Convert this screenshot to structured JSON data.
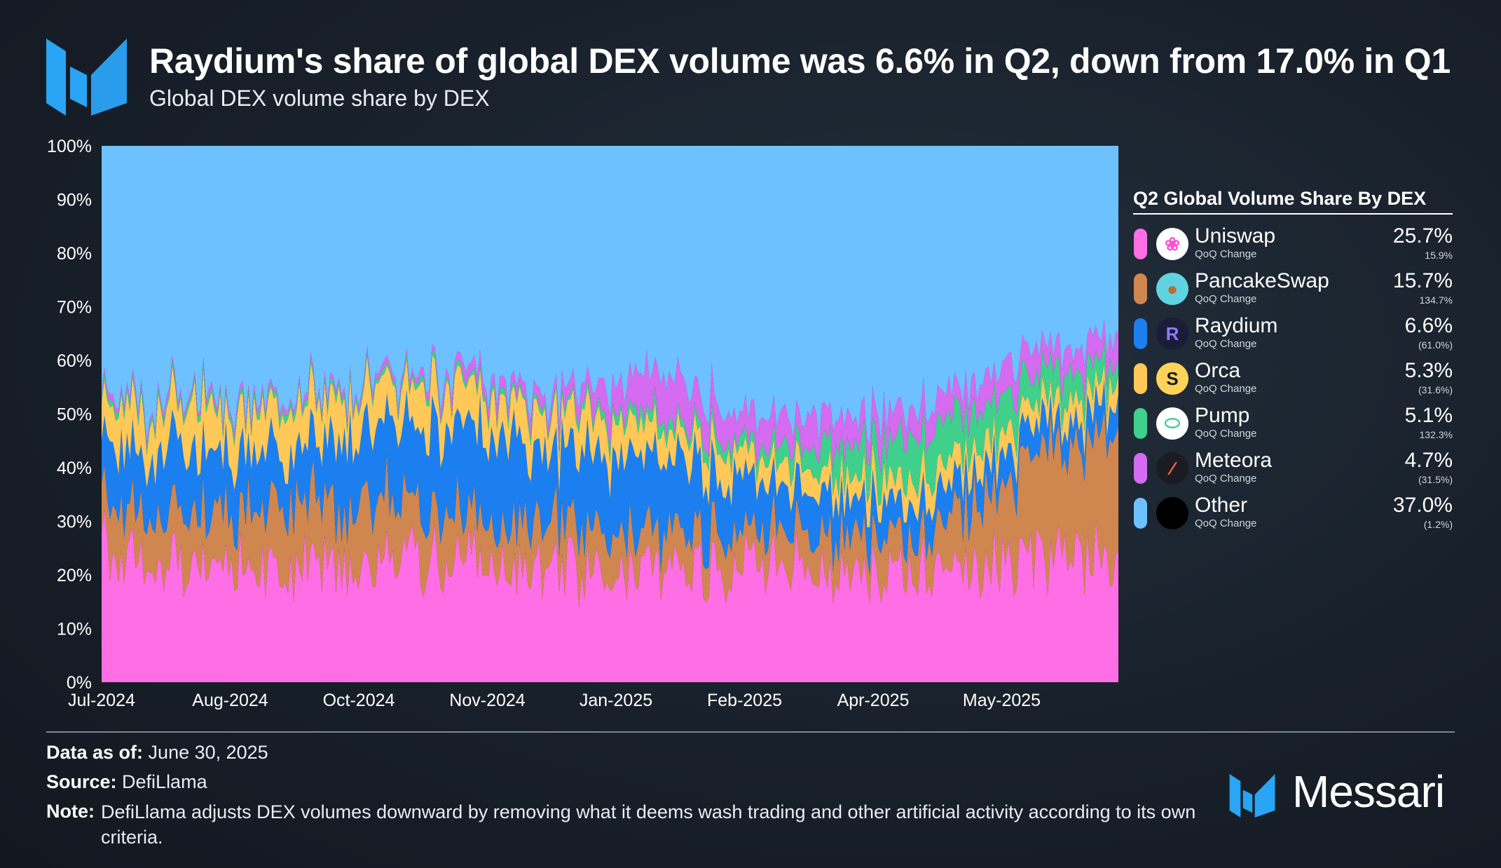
{
  "header": {
    "title": "Raydium's share of global DEX volume was 6.6% in Q2, down from 17.0% in Q1",
    "subtitle": "Global DEX volume share by DEX"
  },
  "legend": {
    "title": "Q2 Global Volume Share By DEX",
    "sub_label": "QoQ Change",
    "items": [
      {
        "name": "Uniswap",
        "share": "25.7%",
        "change": "15.9%",
        "color": "#ff6ee4",
        "icon": "uniswap-icon"
      },
      {
        "name": "PancakeSwap",
        "share": "15.7%",
        "change": "134.7%",
        "color": "#d0864f",
        "icon": "pancakeswap-icon"
      },
      {
        "name": "Raydium",
        "share": "6.6%",
        "change": "(61.0%)",
        "color": "#1b7ff0",
        "icon": "raydium-icon"
      },
      {
        "name": "Orca",
        "share": "5.3%",
        "change": "(31.6%)",
        "color": "#ffc857",
        "icon": "orca-icon"
      },
      {
        "name": "Pump",
        "share": "5.1%",
        "change": "132.3%",
        "color": "#3fd08b",
        "icon": "pump-icon"
      },
      {
        "name": "Meteora",
        "share": "4.7%",
        "change": "(31.5%)",
        "color": "#d46bf0",
        "icon": "meteora-icon"
      },
      {
        "name": "Other",
        "share": "37.0%",
        "change": "(1.2%)",
        "color": "#6ec1ff",
        "icon": "other-icon"
      }
    ]
  },
  "footer": {
    "data_label": "Data as of:",
    "data_value": " June 30, 2025",
    "source_label": "Source:",
    "source_value": " DefiLlama",
    "note_label": "Note:",
    "note_value": "DefiLlama adjusts DEX volumes downward by removing what it deems wash trading and other artificial activity according to its own criteria.",
    "brand": "Messari"
  },
  "chart_data": {
    "type": "area",
    "stacked": true,
    "normalized": true,
    "title": "Raydium's share of global DEX volume was 6.6% in Q2, down from 17.0% in Q1",
    "subtitle": "Global DEX volume share by DEX",
    "xlabel": "",
    "ylabel": "",
    "ylim": [
      0,
      100
    ],
    "y_ticks": [
      "0%",
      "10%",
      "20%",
      "30%",
      "40%",
      "50%",
      "60%",
      "70%",
      "80%",
      "90%",
      "100%"
    ],
    "x_ticks": [
      "Jul-2024",
      "Aug-2024",
      "Oct-2024",
      "Nov-2024",
      "Jan-2025",
      "Feb-2025",
      "Apr-2025",
      "May-2025"
    ],
    "x": [
      "2024-07",
      "2024-08",
      "2024-09",
      "2024-10",
      "2024-11",
      "2024-12",
      "2025-01",
      "2025-02",
      "2025-03",
      "2025-04",
      "2025-05",
      "2025-06"
    ],
    "grid": false,
    "legend_position": "right",
    "series": [
      {
        "name": "Uniswap",
        "color": "#ff6ee4",
        "values": [
          26,
          22,
          22,
          23,
          22,
          21,
          21,
          23,
          20,
          21,
          22,
          24
        ]
      },
      {
        "name": "PancakeSwap",
        "color": "#d0864f",
        "values": [
          8,
          10,
          12,
          11,
          8,
          8,
          7,
          6,
          7,
          7,
          18,
          23
        ]
      },
      {
        "name": "Raydium",
        "color": "#1b7ff0",
        "values": [
          10,
          12,
          10,
          14,
          18,
          14,
          14,
          9,
          7,
          6,
          5,
          5
        ]
      },
      {
        "name": "Orca",
        "color": "#ffc857",
        "values": [
          8,
          8,
          8,
          7,
          7,
          7,
          6,
          5,
          4,
          5,
          4,
          4
        ]
      },
      {
        "name": "Pump",
        "color": "#3fd08b",
        "values": [
          1,
          1,
          1,
          1,
          1,
          1,
          2,
          2,
          6,
          8,
          6,
          4
        ]
      },
      {
        "name": "Meteora",
        "color": "#d46bf0",
        "values": [
          1,
          1,
          1,
          1,
          2,
          3,
          8,
          5,
          6,
          5,
          5,
          5
        ]
      },
      {
        "name": "Other",
        "color": "#6ec1ff",
        "values": [
          46,
          46,
          46,
          43,
          42,
          46,
          42,
          50,
          50,
          48,
          40,
          35
        ]
      }
    ]
  }
}
